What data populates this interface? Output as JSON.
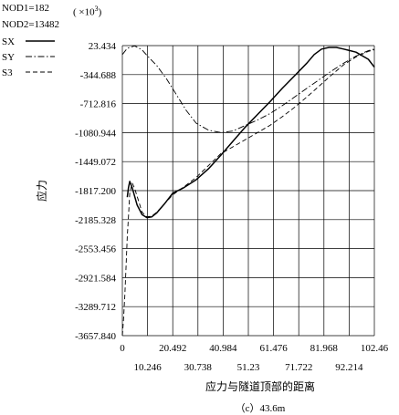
{
  "header": {
    "nod1": "NOD1=182",
    "multiplier_prefix": "( ×10",
    "multiplier_exp": "3",
    "multiplier_suffix": ")",
    "nod2": "NOD2=13482"
  },
  "chart_data": {
    "type": "line",
    "title": "",
    "xlabel": "应力与隧道顶部的距离",
    "ylabel": "应力",
    "caption": "（c）43.6m",
    "xlim": [
      0,
      102.46
    ],
    "ylim": [
      -3657.84,
      23.434
    ],
    "grid": true,
    "legend_position": "top-left",
    "y_ticks": [
      "23.434",
      "-344.688",
      "-712.816",
      "-1080.944",
      "-1449.072",
      "-1817.200",
      "-2185.328",
      "-2553.456",
      "-2921.584",
      "-3289.712",
      "-3657.840"
    ],
    "x_ticks_top": [
      "0",
      "20.492",
      "40.984",
      "61.476",
      "81.968",
      "102.46"
    ],
    "x_ticks_bottom": [
      "10.246",
      "30.738",
      "51.23",
      "71.722",
      "92.214"
    ],
    "series": [
      {
        "name": "SX",
        "style": "solid",
        "x": [
          2,
          2.5,
          3,
          4,
          6,
          8,
          10,
          12,
          14,
          17,
          20.5,
          25,
          30,
          35,
          40,
          45,
          50,
          55,
          60,
          65,
          70,
          75,
          78,
          81,
          84,
          87,
          90,
          95,
          100,
          102.46
        ],
        "y": [
          -1900,
          -1780,
          -1700,
          -1780,
          -2000,
          -2120,
          -2160,
          -2150,
          -2100,
          -1990,
          -1850,
          -1780,
          -1680,
          -1540,
          -1370,
          -1190,
          -1010,
          -850,
          -690,
          -520,
          -360,
          -200,
          -90,
          -20,
          0,
          0,
          -20,
          -60,
          -150,
          -250
        ]
      },
      {
        "name": "SY",
        "style": "dashdot",
        "x": [
          0,
          2,
          5,
          8,
          10,
          14,
          18,
          22,
          26,
          30,
          35,
          40,
          45,
          50,
          55,
          60,
          65,
          70,
          75,
          80,
          85,
          90,
          95,
          100,
          102.46
        ],
        "y": [
          -90,
          -10,
          20,
          -30,
          -100,
          -230,
          -400,
          -600,
          -800,
          -960,
          -1050,
          -1080,
          -1060,
          -990,
          -920,
          -840,
          -740,
          -630,
          -520,
          -410,
          -300,
          -200,
          -110,
          -40,
          -20
        ]
      },
      {
        "name": "S3",
        "style": "dashed",
        "x": [
          0,
          0.5,
          1,
          1.5,
          2,
          2.5,
          3,
          4,
          5,
          7,
          8,
          10,
          12,
          14,
          17,
          20.5,
          25,
          30,
          35,
          40,
          45,
          50,
          55,
          60,
          65,
          70,
          75,
          80,
          85,
          90,
          95,
          100,
          102.46
        ],
        "y": [
          -3657.84,
          -3450,
          -3150,
          -2800,
          -2400,
          -2150,
          -1850,
          -1720,
          -1790,
          -1990,
          -2090,
          -2150,
          -2140,
          -2090,
          -1990,
          -1870,
          -1770,
          -1650,
          -1500,
          -1350,
          -1260,
          -1170,
          -1080,
          -990,
          -880,
          -760,
          -630,
          -490,
          -350,
          -220,
          -120,
          -50,
          -30
        ]
      }
    ]
  }
}
